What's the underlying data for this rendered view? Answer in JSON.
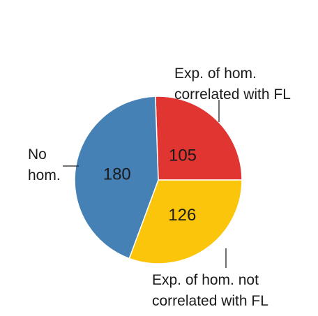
{
  "chart_data": {
    "type": "pie",
    "title": "",
    "slices": [
      {
        "value": 105,
        "label": "105",
        "color": "#e13532",
        "annotation": [
          "Exp. of hom.",
          "correlated with FL"
        ]
      },
      {
        "value": 126,
        "label": "126",
        "color": "#fbc50c",
        "annotation": [
          "Exp. of hom. not",
          "correlated with FL"
        ]
      },
      {
        "value": 180,
        "label": "180",
        "color": "#4681b6",
        "annotation": [
          "No",
          "hom."
        ]
      }
    ],
    "start_angle_deg": -2,
    "direction": "clockwise",
    "slice_border_color": "#ffffff"
  }
}
